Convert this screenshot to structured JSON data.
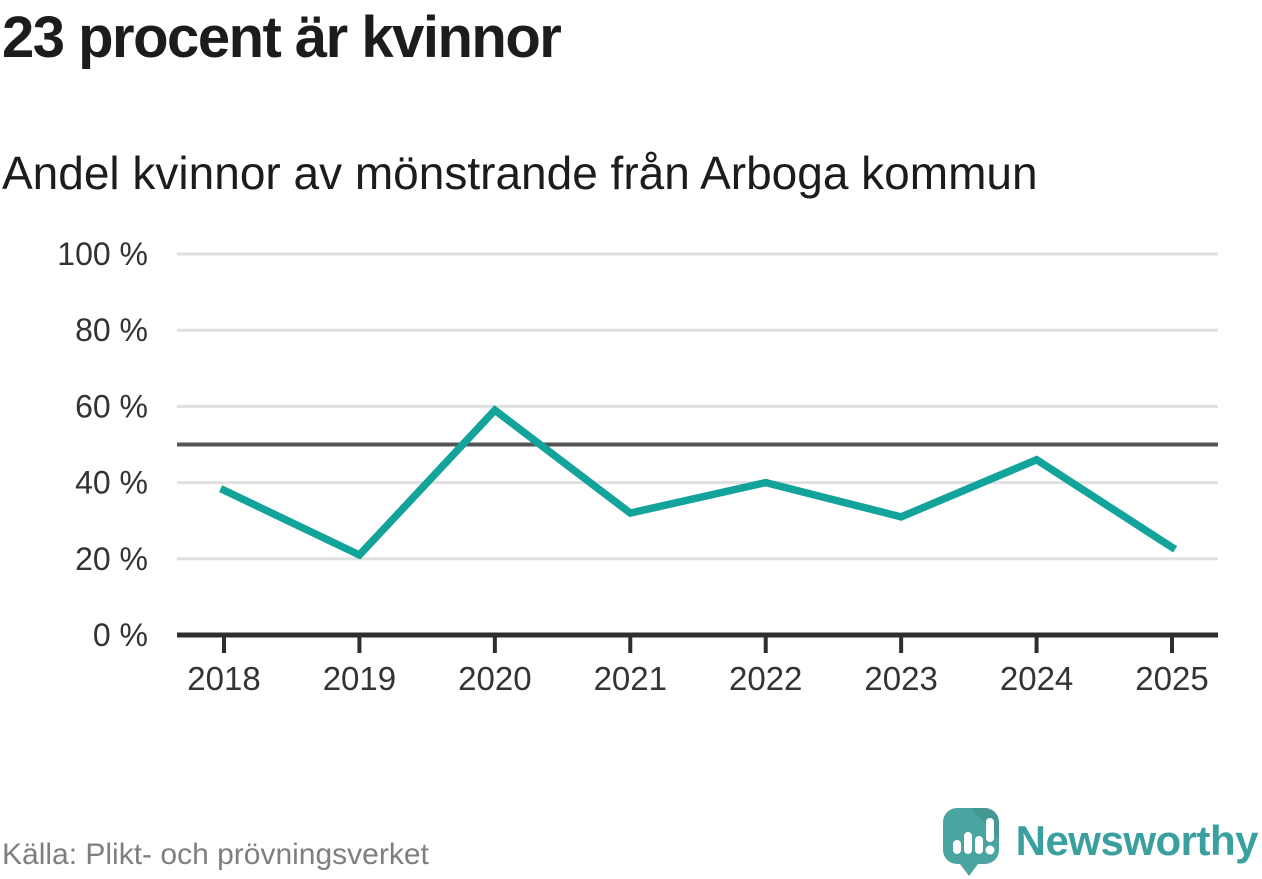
{
  "header": {
    "title": "23 procent är kvinnor",
    "subtitle": "Andel kvinnor av mönstrande från Arboga kommun"
  },
  "chart_data": {
    "type": "line",
    "title": "23 procent är kvinnor",
    "subtitle": "Andel kvinnor av mönstrande från Arboga kommun",
    "x": [
      2018,
      2019,
      2020,
      2021,
      2022,
      2023,
      2024,
      2025
    ],
    "series": [
      {
        "name": "Andel kvinnor av mönstrande",
        "values": [
          38,
          21,
          59,
          32,
          40,
          31,
          46,
          23
        ]
      }
    ],
    "unit": "%",
    "ylim": [
      0,
      100
    ],
    "yticks": [
      0,
      20,
      40,
      60,
      80,
      100
    ],
    "ytick_labels": [
      "0 %",
      "20 %",
      "40 %",
      "60 %",
      "80 %",
      "100 %"
    ],
    "reference_line": 50,
    "grid": "horizontal",
    "legend_position": "none"
  },
  "footer": {
    "source": "Källa: Plikt- och prövningsverket",
    "brand": "Newsworthy"
  },
  "colors": {
    "line": "#12a39a",
    "gridline": "#e0e0e0",
    "reference_line": "#545454",
    "axis": "#2e2e2e",
    "tick_text": "#333333",
    "title_text": "#1c1c1c",
    "source_text": "#7f7f7f",
    "brand_icon": "#4aa5a0",
    "brand_icon_shade": "rgba(0,0,0,0.08)",
    "brand_text": "#3a9f9f"
  }
}
